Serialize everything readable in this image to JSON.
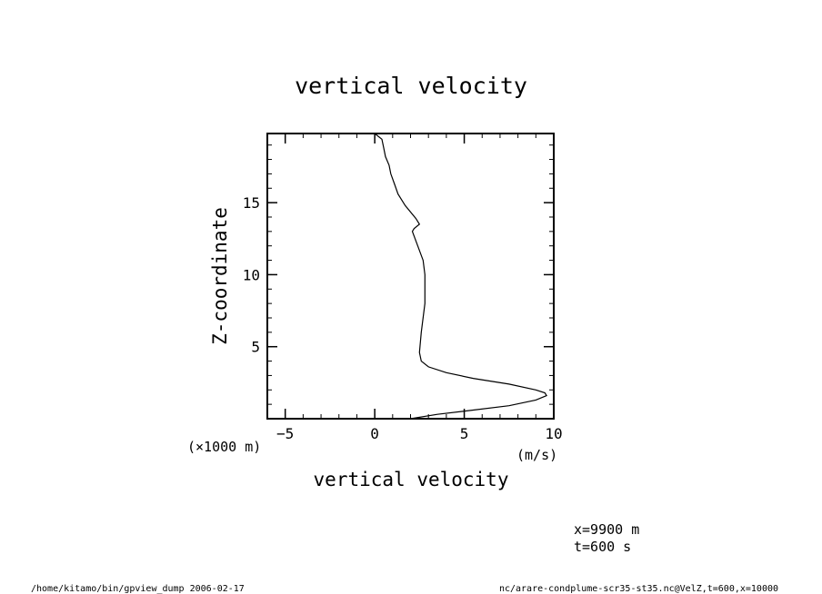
{
  "chart_data": {
    "type": "line",
    "title": "vertical velocity",
    "xlabel": "vertical velocity",
    "xunit": "(m/s)",
    "ylabel": "Z-coordinate",
    "yunit": "(×1000 m)",
    "xlim": [
      -6,
      10
    ],
    "ylim": [
      0,
      19.8
    ],
    "xticks": [
      {
        "v": -5,
        "label": "−5"
      },
      {
        "v": 0,
        "label": "0"
      },
      {
        "v": 5,
        "label": "5"
      },
      {
        "v": 10,
        "label": "10"
      }
    ],
    "yticks": [
      {
        "v": 5,
        "label": "5"
      },
      {
        "v": 10,
        "label": "10"
      },
      {
        "v": 15,
        "label": "15"
      }
    ],
    "grid": false,
    "series": [
      {
        "x": [
          2.0,
          3.5,
          5.5,
          7.5,
          9.0,
          9.6,
          9.5,
          9.0,
          7.5,
          5.5,
          4.0,
          3.0,
          2.6,
          2.5,
          2.6,
          2.8,
          2.8,
          2.7,
          2.4,
          2.1,
          2.2,
          2.5,
          2.3,
          1.7,
          1.3,
          1.1,
          0.9,
          0.8,
          0.6,
          0.5,
          0.4,
          0.0
        ],
        "y": [
          0.0,
          0.3,
          0.6,
          0.9,
          1.3,
          1.6,
          1.8,
          2.0,
          2.4,
          2.8,
          3.2,
          3.6,
          4.0,
          4.6,
          6.0,
          8.0,
          10.0,
          11.0,
          12.0,
          13.0,
          13.2,
          13.5,
          13.9,
          14.8,
          15.6,
          16.3,
          17.0,
          17.6,
          18.2,
          18.8,
          19.4,
          19.8
        ]
      }
    ]
  },
  "annotations": {
    "info_x": "x=9900  m",
    "info_t": "t=600  s",
    "footer_left": "/home/kitamo/bin/gpview_dump  2006-02-17",
    "footer_right": "nc/arare-condplume-scr35-st35.nc@VelZ,t=600,x=10000"
  }
}
